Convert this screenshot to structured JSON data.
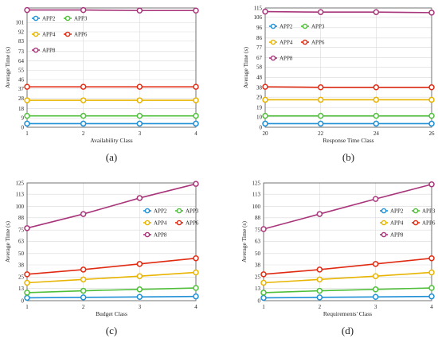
{
  "series_styles": [
    {
      "name": "APP2",
      "color": "#1f8fd6"
    },
    {
      "name": "APP3",
      "color": "#4fbf3a"
    },
    {
      "name": "APP4",
      "color": "#e8b400"
    },
    {
      "name": "APP6",
      "color": "#e02a12"
    },
    {
      "name": "APP8",
      "color": "#a8357a"
    }
  ],
  "chart_data": [
    {
      "type": "line",
      "caption": "(a)",
      "xlabel": "Availability Class",
      "ylabel": "Average Time (s)",
      "x": [
        1,
        2,
        3,
        4
      ],
      "xticks": [
        "1",
        "2",
        "3",
        "4"
      ],
      "ylim": [
        0,
        115
      ],
      "yticks": [
        0,
        9,
        18,
        28,
        37,
        46,
        55,
        64,
        73,
        83,
        92,
        101
      ],
      "legend_placement": "top-left",
      "series": [
        {
          "name": "APP2",
          "values": [
            3.5,
            3.5,
            3.5,
            3.5
          ]
        },
        {
          "name": "APP3",
          "values": [
            11,
            11,
            11,
            11
          ]
        },
        {
          "name": "APP4",
          "values": [
            26,
            26,
            26,
            26
          ]
        },
        {
          "name": "APP6",
          "values": [
            39,
            39,
            39,
            39
          ]
        },
        {
          "name": "APP8",
          "values": [
            113,
            113,
            112.5,
            112.5
          ]
        }
      ]
    },
    {
      "type": "line",
      "caption": "(b)",
      "xlabel": "Response Time Class",
      "ylabel": "Average Time (s)",
      "x": [
        20,
        22,
        24,
        26
      ],
      "xticks": [
        "20",
        "22",
        "24",
        "26"
      ],
      "ylim": [
        0,
        115
      ],
      "yticks": [
        0,
        10,
        19,
        29,
        38,
        48,
        58,
        67,
        77,
        86,
        96,
        106,
        115
      ],
      "legend_placement": "top-left",
      "series": [
        {
          "name": "APP2",
          "values": [
            3.5,
            3.5,
            3.5,
            3.5
          ]
        },
        {
          "name": "APP3",
          "values": [
            11,
            11,
            11,
            11
          ]
        },
        {
          "name": "APP4",
          "values": [
            26.5,
            26.5,
            26.5,
            26.5
          ]
        },
        {
          "name": "APP6",
          "values": [
            39,
            38.5,
            38.5,
            38.5
          ]
        },
        {
          "name": "APP8",
          "values": [
            111.5,
            111,
            111,
            110.5
          ]
        }
      ]
    },
    {
      "type": "line",
      "caption": "(c)",
      "xlabel": "Budget Class",
      "ylabel": "Average Time (s)",
      "x": [
        1,
        2,
        3,
        4
      ],
      "xticks": [
        "1",
        "2",
        "3",
        "4"
      ],
      "ylim": [
        0,
        125
      ],
      "yticks": [
        0,
        13,
        25,
        38,
        50,
        63,
        75,
        88,
        100,
        113,
        125
      ],
      "legend_placement": "center-right",
      "series": [
        {
          "name": "APP2",
          "values": [
            3,
            3.5,
            4,
            4.5
          ]
        },
        {
          "name": "APP3",
          "values": [
            8.5,
            10.5,
            12,
            13.5
          ]
        },
        {
          "name": "APP4",
          "values": [
            19,
            22.5,
            26,
            30
          ]
        },
        {
          "name": "APP6",
          "values": [
            28,
            33,
            39,
            45
          ]
        },
        {
          "name": "APP8",
          "values": [
            77,
            92,
            109,
            124
          ]
        }
      ]
    },
    {
      "type": "line",
      "caption": "(d)",
      "xlabel": "Requirements' Class",
      "ylabel": "Average Time (s)",
      "x": [
        1,
        2,
        3,
        4
      ],
      "xticks": [
        "1",
        "2",
        "3",
        "4"
      ],
      "ylim": [
        0,
        125
      ],
      "yticks": [
        0,
        13,
        25,
        38,
        50,
        63,
        75,
        88,
        100,
        113,
        125
      ],
      "legend_placement": "center-right",
      "series": [
        {
          "name": "APP2",
          "values": [
            3,
            3.5,
            4,
            4.5
          ]
        },
        {
          "name": "APP3",
          "values": [
            8.5,
            10.5,
            12,
            13.5
          ]
        },
        {
          "name": "APP4",
          "values": [
            19,
            22.5,
            26,
            30
          ]
        },
        {
          "name": "APP6",
          "values": [
            28,
            33,
            39,
            45
          ]
        },
        {
          "name": "APP8",
          "values": [
            76,
            92,
            108,
            123.5
          ]
        }
      ]
    }
  ]
}
